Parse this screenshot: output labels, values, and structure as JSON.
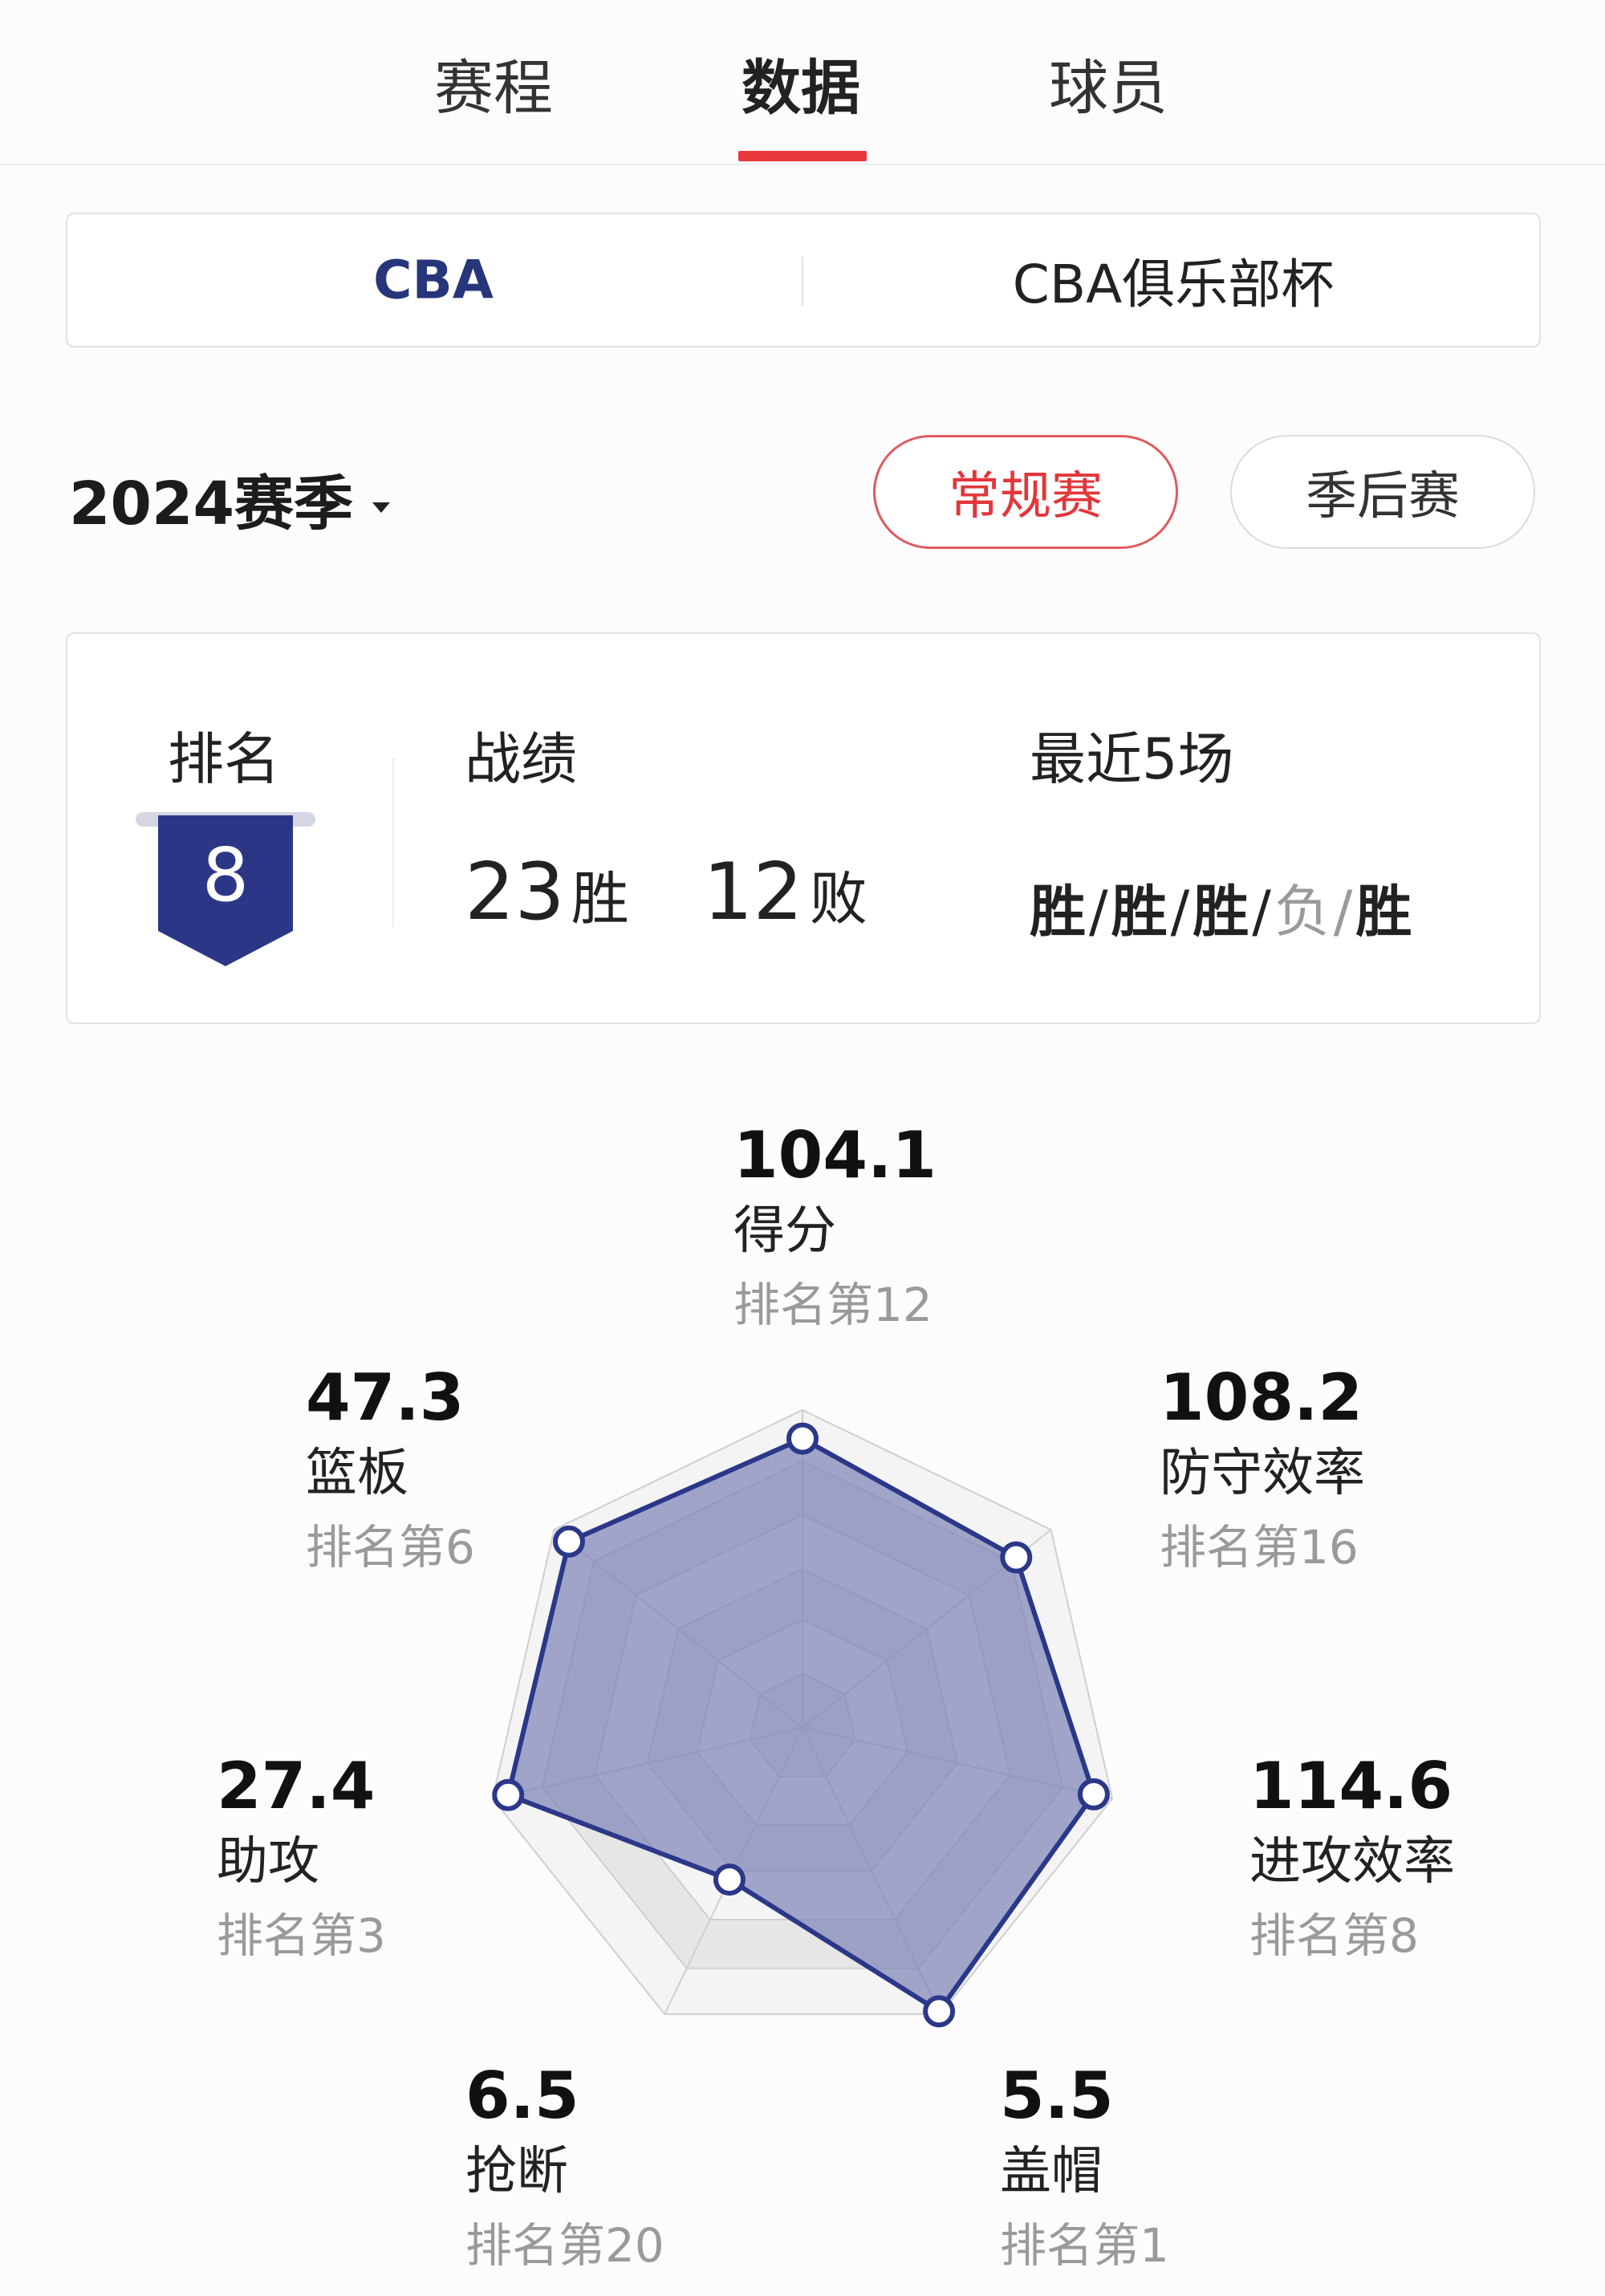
{
  "tabs": [
    {
      "label": "赛程"
    },
    {
      "label": "数据",
      "active": true
    },
    {
      "label": "球员"
    }
  ],
  "leagues": [
    {
      "label": "CBA",
      "active": true
    },
    {
      "label": "CBA俱乐部杯"
    }
  ],
  "season": {
    "label": "2024赛季"
  },
  "phase_buttons": {
    "regular": "常规赛",
    "playoff": "季后赛",
    "active": "regular"
  },
  "summary": {
    "rank_label": "排名",
    "rank": "8",
    "record_label": "战绩",
    "wins": "23",
    "win_unit": "胜",
    "losses": "12",
    "loss_unit": "败",
    "recent_label": "最近5场",
    "recent": [
      "胜",
      "胜",
      "胜",
      "负",
      "胜"
    ],
    "separator": "/"
  },
  "colors": {
    "accent": "#e8383d",
    "brand": "#27367a",
    "radar_fill": "#7c82b6",
    "radar_stroke": "#2b3889"
  },
  "chart_data": {
    "type": "radar",
    "axes": [
      {
        "name": "得分",
        "value": "104.1",
        "rank": "排名第12",
        "level": 0.91
      },
      {
        "name": "防守效率",
        "value": "108.2",
        "rank": "排名第16",
        "level": 0.86
      },
      {
        "name": "进攻效率",
        "value": "114.6",
        "rank": "排名第8",
        "level": 0.94
      },
      {
        "name": "盖帽",
        "value": "5.5",
        "rank": "排名第1",
        "level": 0.99
      },
      {
        "name": "抢断",
        "value": "6.5",
        "rank": "排名第20",
        "level": 0.53
      },
      {
        "name": "助攻",
        "value": "27.4",
        "rank": "排名第3",
        "level": 0.95
      },
      {
        "name": "篮板",
        "value": "47.3",
        "rank": "排名第6",
        "level": 0.94
      }
    ]
  }
}
